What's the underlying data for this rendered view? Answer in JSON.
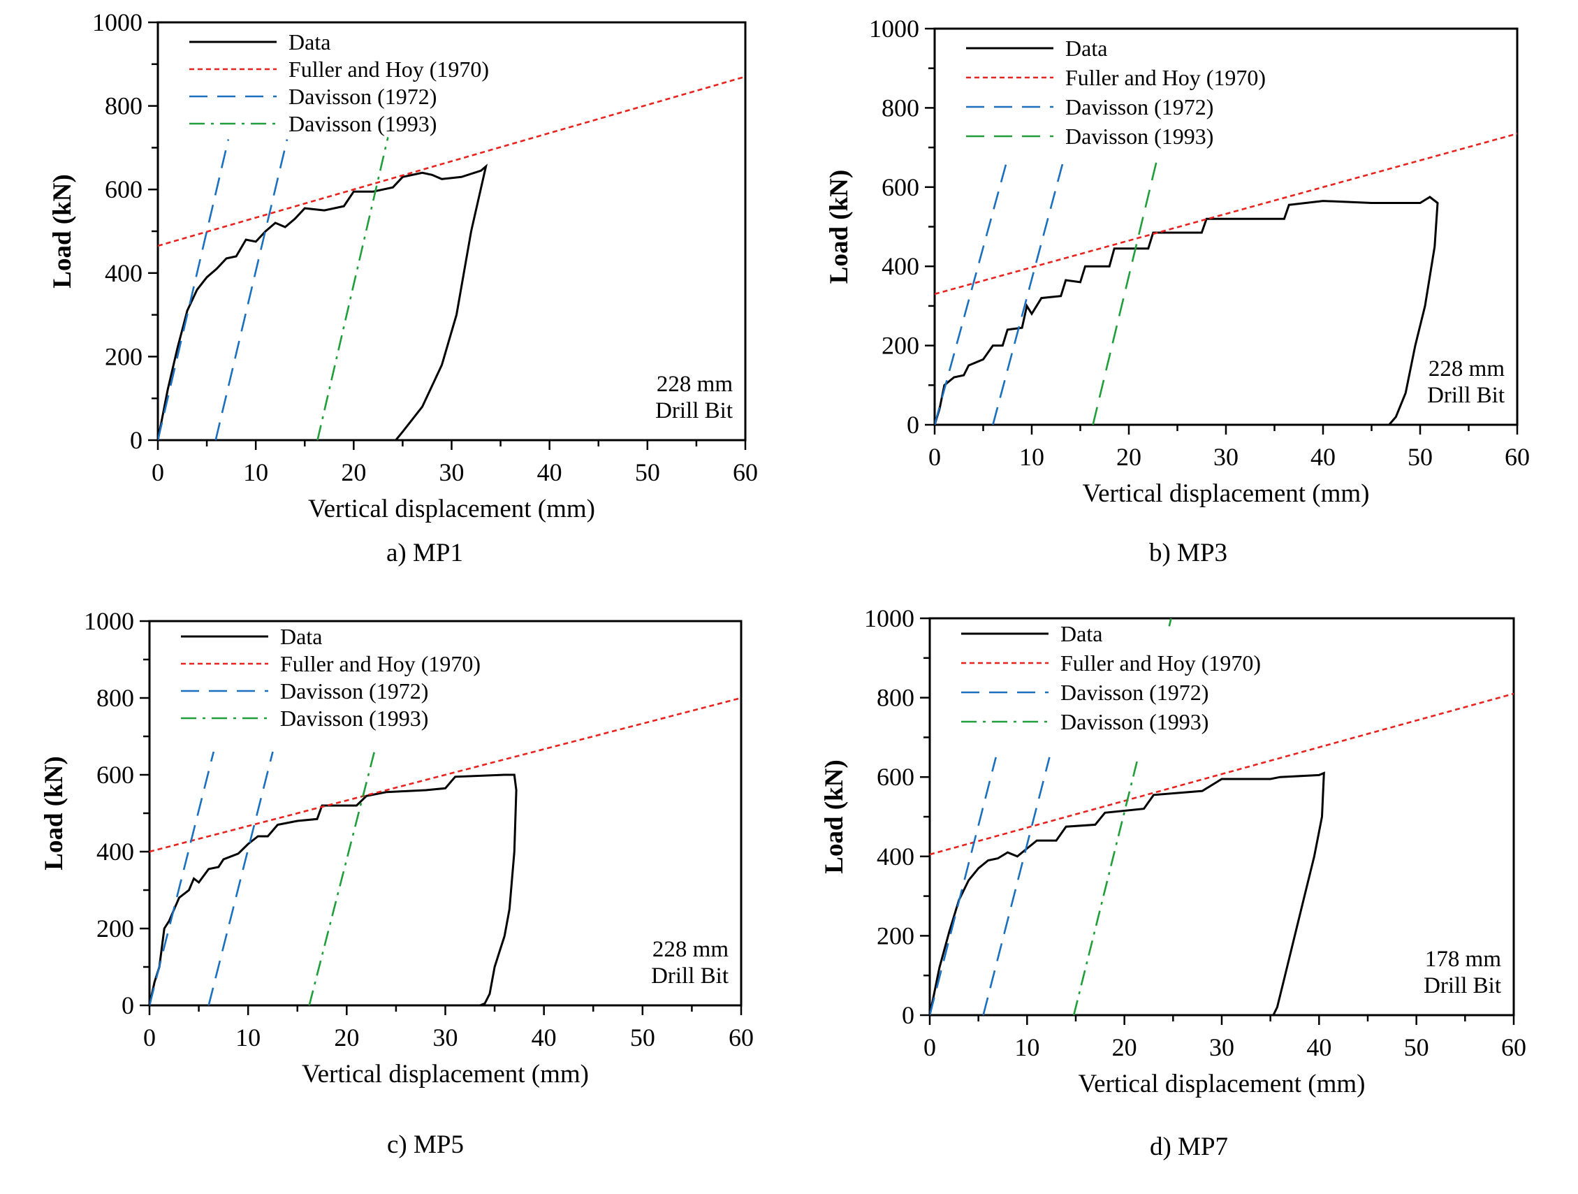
{
  "colors": {
    "data": "#000000",
    "fuller_hoy": "#e8231e",
    "davisson_1972": "#1a6fbf",
    "davisson_1993": "#1f9e3a"
  },
  "chart_data": [
    {
      "type": "line",
      "caption": "a) MP1",
      "xlabel": "Vertical displacement  (mm)",
      "ylabel": "Load  (kN)",
      "xlim": [
        0,
        60
      ],
      "ylim": [
        0,
        1000
      ],
      "xticks": [
        "0",
        "10",
        "20",
        "30",
        "40",
        "50",
        "60"
      ],
      "yticks": [
        "0",
        "200",
        "400",
        "600",
        "800",
        "1000"
      ],
      "grid": false,
      "legend_position": "top-left",
      "annotation": [
        "228 mm",
        "Drill Bit"
      ],
      "series": [
        {
          "name": "Data",
          "style": "solid",
          "x": [
            0,
            1,
            2,
            3,
            4,
            5,
            6,
            7,
            8,
            9,
            10,
            11,
            12,
            13,
            14,
            15,
            17,
            19,
            20,
            22,
            23,
            24,
            25,
            27,
            28,
            29,
            31,
            33,
            33.5,
            32,
            30.5,
            29,
            27,
            25,
            24.3
          ],
          "y": [
            0,
            120,
            220,
            310,
            360,
            390,
            410,
            435,
            440,
            480,
            475,
            500,
            520,
            510,
            530,
            555,
            550,
            560,
            595,
            595,
            600,
            605,
            630,
            640,
            635,
            625,
            630,
            645,
            655,
            500,
            300,
            180,
            80,
            20,
            0
          ]
        },
        {
          "name": "Fuller and Hoy (1970)",
          "style": "dotted",
          "x": [
            0,
            60
          ],
          "y": [
            465,
            870
          ]
        },
        {
          "name": "Davisson (1972)",
          "style": "dashed",
          "segments": [
            {
              "x": [
                0,
                7.2
              ],
              "y": [
                0,
                720
              ]
            },
            {
              "x": [
                5.9,
                13.2
              ],
              "y": [
                0,
                720
              ]
            }
          ]
        },
        {
          "name": "Davisson (1993)",
          "style": "dashdot",
          "x": [
            16.3,
            23.5
          ],
          "y": [
            0,
            725
          ]
        }
      ]
    },
    {
      "type": "line",
      "caption": "b) MP3",
      "xlabel": "Vertical displacement (mm)",
      "ylabel": "Load (kN)",
      "xlim": [
        0,
        60
      ],
      "ylim": [
        0,
        1000
      ],
      "xticks": [
        "0",
        "10",
        "20",
        "30",
        "40",
        "50",
        "60"
      ],
      "yticks": [
        "0",
        "200",
        "400",
        "600",
        "800",
        "1000"
      ],
      "grid": false,
      "legend_position": "top-left",
      "annotation": [
        "228 mm",
        "Drill Bit"
      ],
      "series": [
        {
          "name": "Data",
          "style": "solid",
          "x": [
            0,
            0.5,
            1,
            2,
            3,
            3.5,
            5,
            6,
            7,
            7.5,
            9,
            9.5,
            10,
            11,
            13,
            13.5,
            15,
            15.5,
            18,
            18.5,
            22,
            22.5,
            27.5,
            28,
            36,
            36.5,
            40,
            45,
            50,
            51,
            51.8,
            51.5,
            50.5,
            49.5,
            48.5,
            47.5,
            46.8
          ],
          "y": [
            0,
            40,
            100,
            120,
            125,
            150,
            165,
            200,
            200,
            240,
            245,
            300,
            280,
            320,
            325,
            365,
            360,
            400,
            400,
            445,
            445,
            485,
            485,
            520,
            520,
            555,
            565,
            560,
            560,
            575,
            560,
            450,
            300,
            200,
            80,
            20,
            0
          ]
        },
        {
          "name": "Fuller and Hoy (1970)",
          "style": "dotted",
          "x": [
            0,
            60
          ],
          "y": [
            330,
            735
          ]
        },
        {
          "name": "Davisson (1972)",
          "style": "dashed",
          "segments": [
            {
              "x": [
                0,
                7.6
              ],
              "y": [
                0,
                680
              ]
            },
            {
              "x": [
                6,
                13.4
              ],
              "y": [
                0,
                680
              ]
            }
          ]
        },
        {
          "name": "Davisson (1993)",
          "style": "dashed",
          "x": [
            16.3,
            23
          ],
          "y": [
            0,
            680
          ]
        }
      ]
    },
    {
      "type": "line",
      "caption": "c) MP5",
      "xlabel": "Vertical displacement (mm)",
      "ylabel": "Load (kN)",
      "xlim": [
        0,
        60
      ],
      "ylim": [
        0,
        1000
      ],
      "xticks": [
        "0",
        "10",
        "20",
        "30",
        "40",
        "50",
        "60"
      ],
      "yticks": [
        "0",
        "200",
        "400",
        "600",
        "800",
        "1000"
      ],
      "grid": false,
      "legend_position": "top-left",
      "annotation": [
        "228 mm",
        "Drill Bit"
      ],
      "series": [
        {
          "name": "Data",
          "style": "solid",
          "x": [
            0,
            0.5,
            1,
            1.5,
            2,
            3,
            4,
            4.5,
            5,
            6,
            7,
            7.5,
            9,
            10,
            11,
            12,
            13,
            15,
            17,
            17.5,
            21,
            22,
            24,
            28,
            30,
            31,
            36,
            37,
            37.2,
            37,
            36.5,
            36,
            35.5,
            35,
            34.5,
            34,
            33.5
          ],
          "y": [
            0,
            60,
            100,
            200,
            220,
            280,
            300,
            330,
            320,
            355,
            360,
            380,
            395,
            420,
            440,
            440,
            470,
            480,
            485,
            520,
            520,
            545,
            555,
            560,
            565,
            595,
            600,
            600,
            560,
            400,
            250,
            180,
            140,
            100,
            30,
            5,
            0
          ]
        },
        {
          "name": "Fuller and Hoy (1970)",
          "style": "dotted",
          "x": [
            0,
            60
          ],
          "y": [
            400,
            800
          ]
        },
        {
          "name": "Davisson (1972)",
          "style": "dashed",
          "segments": [
            {
              "x": [
                0,
                6.5
              ],
              "y": [
                0,
                660
              ]
            },
            {
              "x": [
                6,
                12.5
              ],
              "y": [
                0,
                660
              ]
            }
          ]
        },
        {
          "name": "Davisson (1993)",
          "style": "dashdot",
          "x": [
            16.2,
            22.8
          ],
          "y": [
            0,
            660
          ]
        }
      ]
    },
    {
      "type": "line",
      "caption": "d) MP7",
      "xlabel": "Vertical displacement (mm)",
      "ylabel": "Load (kN)",
      "xlim": [
        0,
        60
      ],
      "ylim": [
        0,
        1000
      ],
      "xticks": [
        "0",
        "10",
        "20",
        "30",
        "40",
        "50",
        "60"
      ],
      "yticks": [
        "0",
        "200",
        "400",
        "600",
        "800",
        "1000"
      ],
      "grid": false,
      "legend_position": "top-left",
      "annotation": [
        "178 mm",
        "Drill Bit"
      ],
      "series": [
        {
          "name": "Data",
          "style": "solid",
          "x": [
            0,
            1,
            2,
            3,
            4,
            5,
            6,
            7,
            8,
            9,
            10,
            11,
            13,
            14,
            17,
            18,
            22,
            23,
            28,
            30,
            35,
            36,
            40,
            40.5,
            40.3,
            39.5,
            38.5,
            37.5,
            36.5,
            35.7,
            35.3
          ],
          "y": [
            0,
            120,
            210,
            290,
            340,
            370,
            390,
            395,
            410,
            400,
            420,
            440,
            440,
            475,
            480,
            510,
            520,
            555,
            565,
            595,
            595,
            600,
            605,
            610,
            500,
            400,
            300,
            200,
            100,
            20,
            0
          ]
        },
        {
          "name": "Fuller and Hoy (1970)",
          "style": "dotted",
          "x": [
            0,
            60
          ],
          "y": [
            405,
            810
          ]
        },
        {
          "name": "Davisson (1972)",
          "style": "dashed",
          "segments": [
            {
              "x": [
                0,
                6.8
              ],
              "y": [
                0,
                650
              ]
            },
            {
              "x": [
                5.5,
                12.3
              ],
              "y": [
                0,
                650
              ]
            }
          ]
        },
        {
          "name": "Davisson (1993)",
          "style": "dashdot",
          "segments": [
            {
              "x": [
                14.8,
                21.4
              ],
              "y": [
                0,
                650
              ]
            },
            {
              "x": [
                24.6,
                24.8
              ],
              "y": [
                980,
                1000
              ]
            }
          ]
        }
      ]
    }
  ]
}
